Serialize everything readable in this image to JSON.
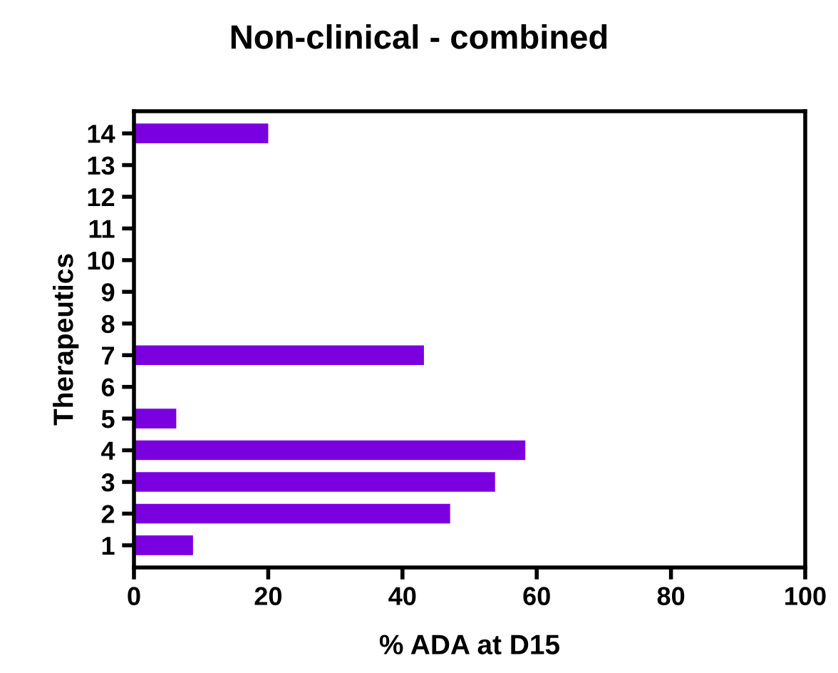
{
  "chart_data": {
    "type": "bar",
    "orientation": "horizontal",
    "title": "Non-clinical - combined",
    "xlabel": "% ADA at D15",
    "ylabel": "Therapeutics",
    "categories": [
      "14",
      "13",
      "12",
      "11",
      "10",
      "9",
      "8",
      "7",
      "6",
      "5",
      "4",
      "3",
      "2",
      "1"
    ],
    "values": [
      20.0,
      null,
      null,
      null,
      null,
      null,
      null,
      43.2,
      null,
      6.3,
      58.3,
      53.8,
      47.1,
      8.8
    ],
    "color": "#7b00e0",
    "xlim": [
      0,
      100
    ],
    "xticks": [
      0,
      20,
      40,
      60,
      80,
      100
    ],
    "grid": false
  }
}
